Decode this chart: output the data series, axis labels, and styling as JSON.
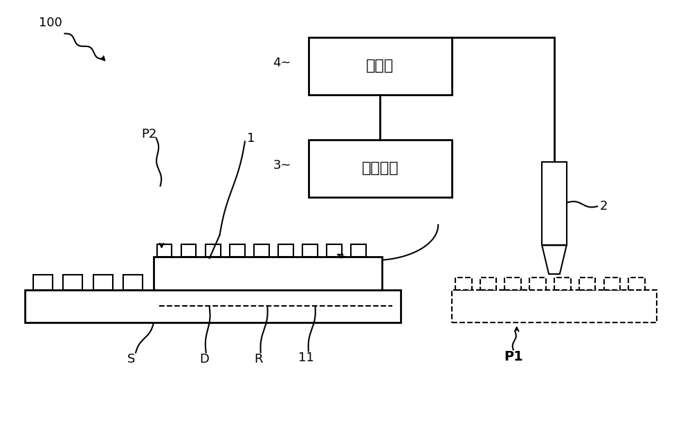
{
  "bg_color": "#ffffff",
  "line_color": "#000000",
  "label_100": "100",
  "label_4": "4",
  "label_3": "3",
  "label_2": "2",
  "label_1": "1",
  "label_P2": "P2",
  "label_P1": "P1",
  "label_S": "S",
  "label_D": "D",
  "label_R": "R",
  "label_11": "11",
  "text_controller": "控制器",
  "text_mechanism": "转置机构",
  "font_size_label": 12
}
